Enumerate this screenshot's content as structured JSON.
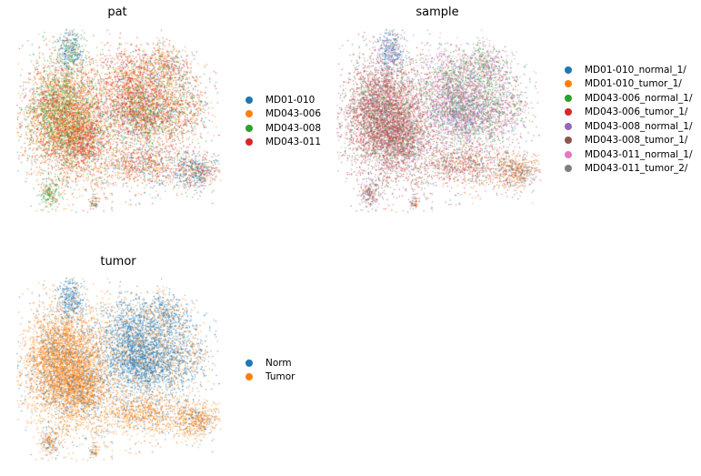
{
  "chart_data": [
    {
      "type": "scatter",
      "title": "pat",
      "legend_position": "right",
      "series": [
        {
          "name": "MD01-010",
          "color": "#1f77b4"
        },
        {
          "name": "MD043-006",
          "color": "#ff7f0e"
        },
        {
          "name": "MD043-008",
          "color": "#2ca02c"
        },
        {
          "name": "MD043-011",
          "color": "#d62728"
        }
      ]
    },
    {
      "type": "scatter",
      "title": "sample",
      "legend_position": "right",
      "series": [
        {
          "name": "MD01-010_normal_1/",
          "color": "#1f77b4"
        },
        {
          "name": "MD01-010_tumor_1/",
          "color": "#ff7f0e"
        },
        {
          "name": "MD043-006_normal_1/",
          "color": "#2ca02c"
        },
        {
          "name": "MD043-006_tumor_1/",
          "color": "#d62728"
        },
        {
          "name": "MD043-008_normal_1/",
          "color": "#9467bd"
        },
        {
          "name": "MD043-008_tumor_1/",
          "color": "#8c564b"
        },
        {
          "name": "MD043-011_normal_1/",
          "color": "#e377c2"
        },
        {
          "name": "MD043-011_tumor_2/",
          "color": "#7f7f7f"
        }
      ]
    },
    {
      "type": "scatter",
      "title": "tumor",
      "legend_position": "right",
      "series": [
        {
          "name": "Norm",
          "color": "#1f77b4"
        },
        {
          "name": "Tumor",
          "color": "#ff7f0e"
        }
      ]
    }
  ]
}
